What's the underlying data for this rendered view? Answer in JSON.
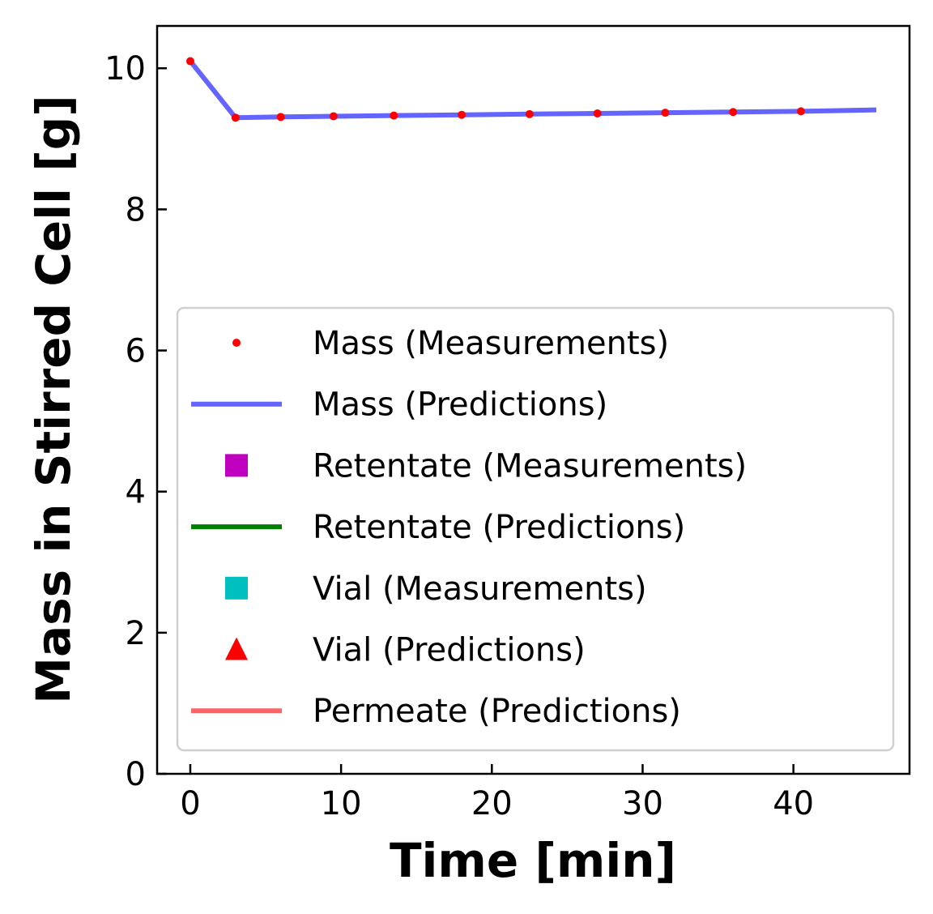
{
  "chart_data": {
    "type": "line",
    "xlabel": "Time [min]",
    "ylabel": "Mass in Stirred Cell [g]",
    "xlim": [
      -2.2,
      47.7
    ],
    "ylim": [
      0,
      10.6
    ],
    "xticks": [
      0,
      10,
      20,
      30,
      40
    ],
    "yticks": [
      0,
      2,
      4,
      6,
      8,
      10
    ],
    "grid": false,
    "legend_position": "lower-right",
    "series": [
      {
        "name": "Mass (Measurements)",
        "style": "point",
        "color": "#ff0000",
        "x": [
          0,
          3,
          6,
          9.5,
          13.5,
          18,
          22.5,
          27,
          31.5,
          36,
          40.5
        ],
        "y": [
          10.1,
          9.3,
          9.31,
          9.32,
          9.33,
          9.34,
          9.35,
          9.36,
          9.37,
          9.38,
          9.39
        ]
      },
      {
        "name": "Mass (Predictions)",
        "style": "line",
        "color": "#6464ff",
        "x": [
          0,
          3,
          6,
          9.5,
          13.5,
          18,
          22.5,
          27,
          31.5,
          36,
          40.5,
          45.5
        ],
        "y": [
          10.1,
          9.3,
          9.31,
          9.32,
          9.33,
          9.34,
          9.35,
          9.36,
          9.37,
          9.38,
          9.39,
          9.41
        ]
      },
      {
        "name": "Retentate (Measurements)",
        "style": "square",
        "color": "#bf00bf",
        "x": [],
        "y": []
      },
      {
        "name": "Retentate (Predictions)",
        "style": "line",
        "color": "#008000",
        "x": [],
        "y": []
      },
      {
        "name": "Vial (Measurements)",
        "style": "square",
        "color": "#00bfbf",
        "x": [],
        "y": []
      },
      {
        "name": "Vial (Predictions)",
        "style": "triangle",
        "color": "#ff0000",
        "x": [],
        "y": []
      },
      {
        "name": "Permeate (Predictions)",
        "style": "line",
        "color": "#ff6464",
        "x": [],
        "y": []
      }
    ]
  }
}
